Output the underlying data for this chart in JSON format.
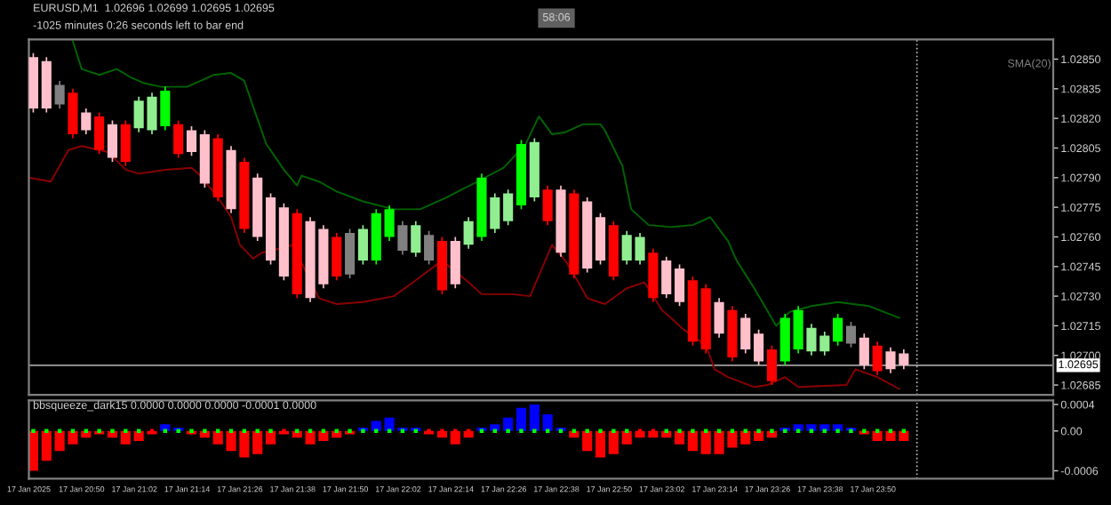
{
  "chart_data": [
    {
      "type": "candlestick",
      "title": "EURUSD,M1  1.02696 1.02699 1.02695 1.02695",
      "subtitle": "-1025 minutes 0:26 seconds left to bar end",
      "annotations": [
        "58:06",
        "SMA(20)"
      ],
      "x": [
        "2025-01-17T20:39",
        "2025-01-17T20:42",
        "2025-01-17T20:45",
        "2025-01-17T20:48",
        "2025-01-17T20:51",
        "2025-01-17T20:54",
        "2025-01-17T20:57",
        "2025-01-17T21:00",
        "2025-01-17T21:03",
        "2025-01-17T21:06",
        "2025-01-17T21:09",
        "2025-01-17T21:12",
        "2025-01-17T21:15",
        "2025-01-17T21:18",
        "2025-01-17T21:21",
        "2025-01-17T21:24",
        "2025-01-17T21:27",
        "2025-01-17T21:30",
        "2025-01-17T21:33",
        "2025-01-17T21:36",
        "2025-01-17T21:39",
        "2025-01-17T21:42",
        "2025-01-17T21:45",
        "2025-01-17T21:48",
        "2025-01-17T21:51",
        "2025-01-17T21:54",
        "2025-01-17T21:57",
        "2025-01-17T22:00",
        "2025-01-17T22:03",
        "2025-01-17T22:06",
        "2025-01-17T22:09",
        "2025-01-17T22:12",
        "2025-01-17T22:15",
        "2025-01-17T22:18",
        "2025-01-17T22:21",
        "2025-01-17T22:24",
        "2025-01-17T22:27",
        "2025-01-17T22:30",
        "2025-01-17T22:33",
        "2025-01-17T22:36",
        "2025-01-17T22:39",
        "2025-01-17T22:42",
        "2025-01-17T22:45",
        "2025-01-17T22:48",
        "2025-01-17T22:51",
        "2025-01-17T22:54",
        "2025-01-17T22:57",
        "2025-01-17T23:00",
        "2025-01-17T23:03",
        "2025-01-17T23:06",
        "2025-01-17T23:09",
        "2025-01-17T23:12",
        "2025-01-17T23:15",
        "2025-01-17T23:18",
        "2025-01-17T23:21",
        "2025-01-17T23:24",
        "2025-01-17T23:27",
        "2025-01-17T23:30",
        "2025-01-17T23:33",
        "2025-01-17T23:36",
        "2025-01-17T23:39",
        "2025-01-17T23:42",
        "2025-01-17T23:45",
        "2025-01-17T23:48",
        "2025-01-17T23:51",
        "2025-01-17T23:54",
        "2025-01-17T23:57"
      ],
      "ohlc": [
        [
          1.02851,
          1.02853,
          1.02823,
          1.02825
        ],
        [
          1.02849,
          1.02851,
          1.02823,
          1.02825
        ],
        [
          1.02837,
          1.02839,
          1.02825,
          1.02827
        ],
        [
          1.02833,
          1.02835,
          1.0281,
          1.02812
        ],
        [
          1.02823,
          1.02825,
          1.02812,
          1.02814
        ],
        [
          1.02821,
          1.02823,
          1.02802,
          1.02804
        ],
        [
          1.02817,
          1.02819,
          1.02798,
          1.028
        ],
        [
          1.02817,
          1.02819,
          1.02796,
          1.02798
        ],
        [
          1.02815,
          1.02831,
          1.02813,
          1.02829
        ],
        [
          1.02814,
          1.02833,
          1.02812,
          1.02831
        ],
        [
          1.02816,
          1.02836,
          1.02814,
          1.02834
        ],
        [
          1.02817,
          1.02819,
          1.028,
          1.02802
        ],
        [
          1.02814,
          1.02816,
          1.02801,
          1.02803
        ],
        [
          1.02812,
          1.02814,
          1.02785,
          1.02787
        ],
        [
          1.0281,
          1.02812,
          1.02778,
          1.0278
        ],
        [
          1.02804,
          1.02806,
          1.02772,
          1.02774
        ],
        [
          1.02798,
          1.028,
          1.02762,
          1.02764
        ],
        [
          1.0279,
          1.02792,
          1.02758,
          1.0276
        ],
        [
          1.0278,
          1.02782,
          1.02746,
          1.02748
        ],
        [
          1.02775,
          1.02777,
          1.02738,
          1.0274
        ],
        [
          1.02772,
          1.02774,
          1.02729,
          1.02731
        ],
        [
          1.02768,
          1.0277,
          1.02727,
          1.02729
        ],
        [
          1.02764,
          1.02766,
          1.02734,
          1.02736
        ],
        [
          1.0276,
          1.02762,
          1.02738,
          1.0274
        ],
        [
          1.02762,
          1.02764,
          1.02739,
          1.02741
        ],
        [
          1.02748,
          1.02766,
          1.02746,
          1.02764
        ],
        [
          1.02748,
          1.02774,
          1.02746,
          1.02772
        ],
        [
          1.0276,
          1.02776,
          1.02758,
          1.02774
        ],
        [
          1.02766,
          1.02768,
          1.02751,
          1.02753
        ],
        [
          1.02752,
          1.02768,
          1.0275,
          1.02766
        ],
        [
          1.02761,
          1.02763,
          1.02746,
          1.02748
        ],
        [
          1.02758,
          1.0276,
          1.02731,
          1.02733
        ],
        [
          1.02758,
          1.0276,
          1.02734,
          1.02736
        ],
        [
          1.02756,
          1.0277,
          1.02754,
          1.02768
        ],
        [
          1.0276,
          1.02792,
          1.02758,
          1.0279
        ],
        [
          1.02764,
          1.02782,
          1.02762,
          1.0278
        ],
        [
          1.02768,
          1.02784,
          1.02766,
          1.02782
        ],
        [
          1.02776,
          1.02809,
          1.02774,
          1.02807
        ],
        [
          1.0278,
          1.0281,
          1.02778,
          1.02808
        ],
        [
          1.02784,
          1.02786,
          1.02766,
          1.02768
        ],
        [
          1.02784,
          1.02786,
          1.0275,
          1.02752
        ],
        [
          1.02782,
          1.02784,
          1.02739,
          1.02741
        ],
        [
          1.02778,
          1.0278,
          1.02742,
          1.02744
        ],
        [
          1.0277,
          1.02772,
          1.02746,
          1.02748
        ],
        [
          1.02766,
          1.02768,
          1.02738,
          1.0274
        ],
        [
          1.02748,
          1.02763,
          1.02746,
          1.02761
        ],
        [
          1.02748,
          1.02762,
          1.02746,
          1.0276
        ],
        [
          1.02752,
          1.02754,
          1.02727,
          1.02729
        ],
        [
          1.02748,
          1.0275,
          1.02729,
          1.02731
        ],
        [
          1.02744,
          1.02746,
          1.02725,
          1.02727
        ],
        [
          1.02738,
          1.0274,
          1.02705,
          1.02707
        ],
        [
          1.02734,
          1.02736,
          1.02701,
          1.02703
        ],
        [
          1.02727,
          1.02729,
          1.02709,
          1.02711
        ],
        [
          1.02723,
          1.02725,
          1.02697,
          1.02699
        ],
        [
          1.02719,
          1.02721,
          1.02701,
          1.02703
        ],
        [
          1.02711,
          1.02713,
          1.02695,
          1.02697
        ],
        [
          1.02703,
          1.02705,
          1.02685,
          1.02687
        ],
        [
          1.02697,
          1.02721,
          1.02695,
          1.02719
        ],
        [
          1.02703,
          1.02725,
          1.02701,
          1.02723
        ],
        [
          1.02702,
          1.02716,
          1.027,
          1.02714
        ],
        [
          1.02702,
          1.02712,
          1.027,
          1.0271
        ],
        [
          1.02707,
          1.02721,
          1.02705,
          1.02719
        ],
        [
          1.02715,
          1.02717,
          1.02704,
          1.02706
        ],
        [
          1.02709,
          1.02711,
          1.02693,
          1.02695
        ],
        [
          1.02705,
          1.02707,
          1.0269,
          1.02692
        ],
        [
          1.02702,
          1.02704,
          1.02691,
          1.02693
        ],
        [
          1.02701,
          1.02703,
          1.02693,
          1.02695
        ]
      ],
      "colors": [
        "#ffc0cb",
        "#ffc0cb",
        "#808080",
        "#ff0000",
        "#ffc0cb",
        "#ff0000",
        "#ffc0cb",
        "#ff0000",
        "#90ee90",
        "#90ee90",
        "#00ff00",
        "#ff0000",
        "#ffc0cb",
        "#ffc0cb",
        "#ff0000",
        "#ffc0cb",
        "#ff0000",
        "#ffc0cb",
        "#ffc0cb",
        "#ffc0cb",
        "#ff0000",
        "#ffc0cb",
        "#ffc0cb",
        "#ff0000",
        "#808080",
        "#90ee90",
        "#00ff00",
        "#00ff00",
        "#808080",
        "#90ee90",
        "#808080",
        "#ff0000",
        "#ffc0cb",
        "#90ee90",
        "#00ff00",
        "#90ee90",
        "#90ee90",
        "#00ff00",
        "#90ee90",
        "#ff0000",
        "#ffc0cb",
        "#ff0000",
        "#ffc0cb",
        "#ffc0cb",
        "#ff0000",
        "#90ee90",
        "#90ee90",
        "#ff0000",
        "#ffc0cb",
        "#ffc0cb",
        "#ff0000",
        "#ff0000",
        "#ffc0cb",
        "#ff0000",
        "#ffc0cb",
        "#ffc0cb",
        "#ff0000",
        "#00ff00",
        "#00ff00",
        "#90ee90",
        "#90ee90",
        "#00ff00",
        "#808080",
        "#ffc0cb",
        "#ff0000",
        "#ffc0cb",
        "#ffc0cb"
      ],
      "series": [
        {
          "type": "line",
          "color": "#006400",
          "x": [
            "2025-01-17T20:48",
            "2025-01-17T20:50",
            "2025-01-17T20:54",
            "2025-01-17T20:58",
            "2025-01-17T21:01",
            "2025-01-17T21:04",
            "2025-01-17T21:08",
            "2025-01-17T21:14",
            "2025-01-17T21:20",
            "2025-01-17T21:24",
            "2025-01-17T21:27",
            "2025-01-17T21:29",
            "2025-01-17T21:32",
            "2025-01-17T21:36",
            "2025-01-17T21:39",
            "2025-01-17T21:40",
            "2025-01-17T21:44",
            "2025-01-17T21:48",
            "2025-01-17T21:54",
            "2025-01-17T22:01",
            "2025-01-17T22:07",
            "2025-01-17T22:13",
            "2025-01-17T22:20",
            "2025-01-17T22:26",
            "2025-01-17T22:31",
            "2025-01-17T22:34",
            "2025-01-17T22:37",
            "2025-01-17T22:40",
            "2025-01-17T22:44",
            "2025-01-17T22:48",
            "2025-01-17T22:49",
            "2025-01-17T22:53",
            "2025-01-17T22:55",
            "2025-01-17T22:59",
            "2025-01-17T23:04",
            "2025-01-17T23:09",
            "2025-01-17T23:13",
            "2025-01-17T23:17",
            "2025-01-17T23:19",
            "2025-01-17T23:23",
            "2025-01-17T23:28",
            "2025-01-17T23:31",
            "2025-01-17T23:36",
            "2025-01-17T23:42",
            "2025-01-17T23:49",
            "2025-01-17T23:56"
          ],
          "values": [
            1.02859,
            1.02845,
            1.02842,
            1.02845,
            1.02841,
            1.02838,
            1.02836,
            1.02836,
            1.02842,
            1.02843,
            1.02839,
            1.02826,
            1.02807,
            1.02794,
            1.02786,
            1.02791,
            1.02788,
            1.02783,
            1.02778,
            1.02774,
            1.02774,
            1.0278,
            1.02788,
            1.02795,
            1.02807,
            1.02821,
            1.02812,
            1.02813,
            1.02817,
            1.02817,
            1.02814,
            1.02796,
            1.02774,
            1.02766,
            1.02765,
            1.02766,
            1.0277,
            1.02758,
            1.02748,
            1.02734,
            1.02715,
            1.02722,
            1.02725,
            1.02727,
            1.02725,
            1.02719
          ]
        },
        {
          "type": "line",
          "color": "#8b0000",
          "x": [
            "2025-01-17T20:38",
            "2025-01-17T20:43",
            "2025-01-17T20:47",
            "2025-01-17T20:50",
            "2025-01-17T20:56",
            "2025-01-17T21:00",
            "2025-01-17T21:03",
            "2025-01-17T21:09",
            "2025-01-17T21:15",
            "2025-01-17T21:17",
            "2025-01-17T21:21",
            "2025-01-17T21:24",
            "2025-01-17T21:26",
            "2025-01-17T21:29",
            "2025-01-17T21:31",
            "2025-01-17T21:35",
            "2025-01-17T21:38",
            "2025-01-17T21:44",
            "2025-01-17T21:48",
            "2025-01-17T21:54",
            "2025-01-17T22:01",
            "2025-01-17T22:06",
            "2025-01-17T22:12",
            "2025-01-17T22:18",
            "2025-01-17T22:21",
            "2025-01-17T22:28",
            "2025-01-17T22:32",
            "2025-01-17T22:37",
            "2025-01-17T22:40",
            "2025-01-17T22:43",
            "2025-01-17T22:45",
            "2025-01-17T22:49",
            "2025-01-17T22:54",
            "2025-01-17T22:58",
            "2025-01-17T23:02",
            "2025-01-17T23:07",
            "2025-01-17T23:12",
            "2025-01-17T23:14",
            "2025-01-17T23:17",
            "2025-01-17T23:23",
            "2025-01-17T23:26",
            "2025-01-17T23:30",
            "2025-01-17T23:33",
            "2025-01-17T23:44",
            "2025-01-17T23:46",
            "2025-01-17T23:51",
            "2025-01-17T23:56"
          ],
          "values": [
            1.0279,
            1.02788,
            1.02804,
            1.02806,
            1.02803,
            1.02794,
            1.02792,
            1.02794,
            1.02795,
            1.02791,
            1.0278,
            1.0277,
            1.02756,
            1.02749,
            1.02752,
            1.02754,
            1.02756,
            1.02729,
            1.02726,
            1.02727,
            1.0273,
            1.02738,
            1.02748,
            1.02737,
            1.02731,
            1.02731,
            1.0273,
            1.02756,
            1.02748,
            1.02737,
            1.02729,
            1.02726,
            1.02734,
            1.02737,
            1.02723,
            1.02713,
            1.02705,
            1.02693,
            1.02689,
            1.02684,
            1.02685,
            1.02689,
            1.02684,
            1.02685,
            1.02693,
            1.02689,
            1.02683
          ]
        }
      ],
      "xlim": [
        "2025-01-17T20:38",
        "2025-01-18T00:31"
      ],
      "ylim": [
        1.0268,
        1.0286
      ],
      "yticks": [
        {
          "value": 1.0285,
          "label": "1.02850"
        },
        1.02835,
        {
          "value": 1.0282,
          "label": "1.02820"
        },
        1.02805,
        {
          "value": 1.0279,
          "label": "1.02790"
        },
        1.02775,
        {
          "value": 1.0276,
          "label": "1.02760"
        },
        1.02745,
        {
          "value": 1.0273,
          "label": "1.02730"
        },
        1.02715,
        {
          "value": 1.027,
          "label": "1.02700"
        },
        1.02685
      ],
      "tick_labels": "y",
      "ref_lines": [
        {
          "axis": "y",
          "value": 1.02695,
          "label": "1.02695",
          "color": "#a0a0a0",
          "line_style": "solid"
        },
        {
          "axis": "x",
          "value": "2025-01-18T00:00",
          "label": null,
          "color": "#c0c0c0",
          "line_style": "dotted"
        }
      ]
    },
    {
      "type": "bar",
      "title": "bbsqueeze_dark15 0.0000 0.0000 0.0000 -0.0001 0.0000",
      "x": [
        "2025-01-17T20:39",
        "2025-01-17T20:42",
        "2025-01-17T20:45",
        "2025-01-17T20:48",
        "2025-01-17T20:51",
        "2025-01-17T20:54",
        "2025-01-17T20:57",
        "2025-01-17T21:00",
        "2025-01-17T21:03",
        "2025-01-17T21:06",
        "2025-01-17T21:09",
        "2025-01-17T21:12",
        "2025-01-17T21:15",
        "2025-01-17T21:18",
        "2025-01-17T21:21",
        "2025-01-17T21:24",
        "2025-01-17T21:27",
        "2025-01-17T21:30",
        "2025-01-17T21:33",
        "2025-01-17T21:36",
        "2025-01-17T21:39",
        "2025-01-17T21:42",
        "2025-01-17T21:45",
        "2025-01-17T21:48",
        "2025-01-17T21:51",
        "2025-01-17T21:54",
        "2025-01-17T21:57",
        "2025-01-17T22:00",
        "2025-01-17T22:03",
        "2025-01-17T22:06",
        "2025-01-17T22:09",
        "2025-01-17T22:12",
        "2025-01-17T22:15",
        "2025-01-17T22:18",
        "2025-01-17T22:21",
        "2025-01-17T22:24",
        "2025-01-17T22:27",
        "2025-01-17T22:30",
        "2025-01-17T22:33",
        "2025-01-17T22:36",
        "2025-01-17T22:39",
        "2025-01-17T22:42",
        "2025-01-17T22:45",
        "2025-01-17T22:48",
        "2025-01-17T22:51",
        "2025-01-17T22:54",
        "2025-01-17T22:57",
        "2025-01-17T23:00",
        "2025-01-17T23:03",
        "2025-01-17T23:06",
        "2025-01-17T23:09",
        "2025-01-17T23:12",
        "2025-01-17T23:15",
        "2025-01-17T23:18",
        "2025-01-17T23:21",
        "2025-01-17T23:24",
        "2025-01-17T23:27",
        "2025-01-17T23:30",
        "2025-01-17T23:33",
        "2025-01-17T23:36",
        "2025-01-17T23:39",
        "2025-01-17T23:42",
        "2025-01-17T23:45",
        "2025-01-17T23:48",
        "2025-01-17T23:51",
        "2025-01-17T23:54",
        "2025-01-17T23:57"
      ],
      "series": [
        {
          "type": "bar",
          "values": [
            -0.0006,
            -0.00045,
            -0.0003,
            -0.0002,
            -0.0001,
            -5e-05,
            -0.0001,
            -0.0002,
            -0.00015,
            -5e-05,
            0.0001,
            5e-05,
            -5e-05,
            -0.0001,
            -0.0002,
            -0.0003,
            -0.0004,
            -0.00035,
            -0.0002,
            -5e-05,
            -0.0001,
            -0.0002,
            -0.00015,
            -0.0001,
            -5e-05,
            5e-05,
            0.00015,
            0.0002,
            5e-05,
            5e-05,
            -5e-05,
            -0.0001,
            -0.0002,
            -0.0001,
            5e-05,
            0.0001,
            0.0002,
            0.00035,
            0.0004,
            0.00025,
            5e-05,
            -0.0001,
            -0.0003,
            -0.0004,
            -0.00035,
            -0.0002,
            -0.0001,
            -0.0001,
            -0.0001,
            -0.0002,
            -0.0003,
            -0.00035,
            -0.00035,
            -0.00025,
            -0.0002,
            -0.00015,
            -0.0001,
            5e-05,
            0.0001,
            0.0001,
            0.0001,
            0.0001,
            5e-05,
            -5e-05,
            -0.00015,
            -0.00015,
            -0.00015
          ],
          "colors": [
            "#ff0000",
            "#ff0000",
            "#ff0000",
            "#ff0000",
            "#ff0000",
            "#ff0000",
            "#ff0000",
            "#ff0000",
            "#ff0000",
            "#ff0000",
            "#0000ff",
            "#0000ff",
            "#ff0000",
            "#ff0000",
            "#ff0000",
            "#ff0000",
            "#ff0000",
            "#ff0000",
            "#ff0000",
            "#ff0000",
            "#ff0000",
            "#ff0000",
            "#ff0000",
            "#ff0000",
            "#ff0000",
            "#0000ff",
            "#0000ff",
            "#0000ff",
            "#0000ff",
            "#0000ff",
            "#ff0000",
            "#ff0000",
            "#ff0000",
            "#ff0000",
            "#0000ff",
            "#0000ff",
            "#0000ff",
            "#0000ff",
            "#0000ff",
            "#0000ff",
            "#0000ff",
            "#ff0000",
            "#ff0000",
            "#ff0000",
            "#ff0000",
            "#ff0000",
            "#ff0000",
            "#ff0000",
            "#ff0000",
            "#ff0000",
            "#ff0000",
            "#ff0000",
            "#ff0000",
            "#ff0000",
            "#ff0000",
            "#ff0000",
            "#ff0000",
            "#0000ff",
            "#0000ff",
            "#0000ff",
            "#0000ff",
            "#0000ff",
            "#0000ff",
            "#ff0000",
            "#ff0000",
            "#ff0000",
            "#ff0000"
          ]
        },
        {
          "type": "scatter",
          "marker": "square",
          "values": [
            0,
            0,
            0,
            0,
            0,
            0,
            0,
            0,
            0,
            0,
            0,
            0,
            0,
            0,
            0,
            0,
            0,
            0,
            0,
            0,
            0,
            0,
            0,
            0,
            0,
            0,
            0,
            0,
            0,
            0,
            0,
            0,
            0,
            0,
            0,
            0,
            0,
            0,
            0,
            0,
            0,
            0,
            0,
            0,
            0,
            0,
            0,
            0,
            0,
            0,
            0,
            0,
            0,
            0,
            0,
            0,
            0,
            0,
            0,
            0,
            0,
            0,
            0,
            0,
            0,
            0,
            0
          ],
          "colors": [
            "#00ff00",
            "#00ff00",
            "#00ff00",
            "#00ff00",
            "#00ff00",
            "#00ff00",
            "#00ff00",
            "#00ff00",
            "#00ff00",
            "#ff0000",
            "#00ff00",
            "#00ff00",
            "#00ff00",
            "#00ff00",
            "#00ff00",
            "#00ff00",
            "#00ff00",
            "#00ff00",
            "#00ff00",
            "#ff0000",
            "#00ff00",
            "#00ff00",
            "#00ff00",
            "#00ff00",
            "#00ff00",
            "#00ff00",
            "#00ff00",
            "#00ff00",
            "#00ff00",
            "#00ff00",
            "#ff0000",
            "#ff0000",
            "#ff0000",
            "#ff0000",
            "#00ff00",
            "#00ff00",
            "#00ff00",
            "#00ff00",
            "#00ff00",
            "#00ff00",
            "#00ff00",
            "#00ff00",
            "#00ff00",
            "#00ff00",
            "#00ff00",
            "#00ff00",
            "#ff0000",
            "#ff0000",
            "#00ff00",
            "#00ff00",
            "#00ff00",
            "#00ff00",
            "#00ff00",
            "#00ff00",
            "#00ff00",
            "#00ff00",
            "#00ff00",
            "#00ff00",
            "#00ff00",
            "#00ff00",
            "#00ff00",
            "#00ff00",
            "#00ff00",
            "#00ff00",
            "#00ff00",
            "#00ff00",
            "#00ff00"
          ]
        }
      ],
      "xlim": [
        "2025-01-17T20:38",
        "2025-01-18T00:31"
      ],
      "ylim": [
        -0.00072,
        0.00046
      ],
      "xticks": [
        {
          "value": "2025-01-17T20:38",
          "label": "17 Jan 2025"
        },
        {
          "value": "2025-01-17T20:50",
          "label": "17 Jan 20:50"
        },
        {
          "value": "2025-01-17T21:02",
          "label": "17 Jan 21:02"
        },
        {
          "value": "2025-01-17T21:14",
          "label": "17 Jan 21:14"
        },
        {
          "value": "2025-01-17T21:26",
          "label": "17 Jan 21:26"
        },
        {
          "value": "2025-01-17T21:38",
          "label": "17 Jan 21:38"
        },
        {
          "value": "2025-01-17T21:50",
          "label": "17 Jan 21:50"
        },
        {
          "value": "2025-01-17T22:02",
          "label": "17 Jan 22:02"
        },
        {
          "value": "2025-01-17T22:14",
          "label": "17 Jan 22:14"
        },
        {
          "value": "2025-01-17T22:26",
          "label": "17 Jan 22:26"
        },
        {
          "value": "2025-01-17T22:38",
          "label": "17 Jan 22:38"
        },
        {
          "value": "2025-01-17T22:50",
          "label": "17 Jan 22:50"
        },
        {
          "value": "2025-01-17T23:02",
          "label": "17 Jan 23:02"
        },
        {
          "value": "2025-01-17T23:14",
          "label": "17 Jan 23:14"
        },
        {
          "value": "2025-01-17T23:26",
          "label": "17 Jan 23:26"
        },
        {
          "value": "2025-01-17T23:38",
          "label": "17 Jan 23:38"
        },
        {
          "value": "2025-01-17T23:50",
          "label": "17 Jan 23:50"
        }
      ],
      "yticks": [
        0.0004,
        {
          "value": 0,
          "label": "0.00"
        },
        -0.0006
      ],
      "ref_lines": [
        {
          "axis": "x",
          "value": "2025-01-18T00:00",
          "label": null,
          "color": "#c0c0c0",
          "line_style": "dotted"
        }
      ]
    }
  ]
}
